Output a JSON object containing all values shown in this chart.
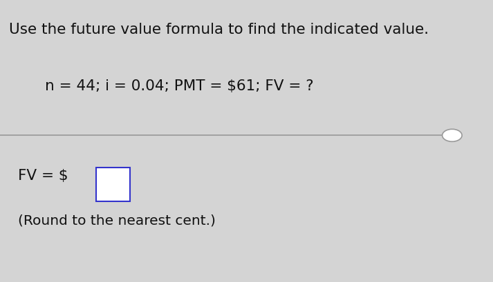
{
  "title_line": "Use the future value formula to find the indicated value.",
  "formula_line": "n = 44; i = 0.04; PMT = $61; FV = ?",
  "answer_prefix": "FV = $",
  "answer_note": "(Round to the nearest cent.)",
  "bg_color": "#d4d4d4",
  "text_color": "#111111",
  "box_color": "#3333cc",
  "title_fontsize": 15.5,
  "formula_fontsize": 15.5,
  "answer_fontsize": 15.5,
  "note_fontsize": 14.5,
  "separator_line_color": "#999999"
}
